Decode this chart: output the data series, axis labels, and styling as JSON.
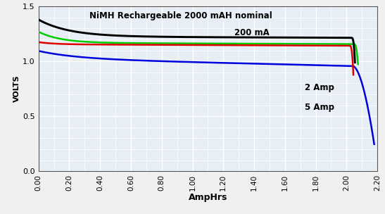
{
  "title_line1": "NiMH Rechargeable 2000 mAH nominal",
  "title_line2": "200 mA",
  "xlabel": "AmpHrs",
  "ylabel": "VOLTS",
  "xlim": [
    0.0,
    2.2
  ],
  "ylim": [
    0.0,
    1.5
  ],
  "xticks": [
    0.0,
    0.2,
    0.4,
    0.6,
    0.8,
    1.0,
    1.2,
    1.4,
    1.6,
    1.8,
    2.0,
    2.2
  ],
  "yticks": [
    0.0,
    0.5,
    1.0,
    1.5
  ],
  "outer_bg": "#f0f0f0",
  "plot_bg": "#e8eef5",
  "grid_color": "#ffffff",
  "label_2amp": "2 Amp",
  "label_5amp": "5 Amp",
  "colors": {
    "black_200ma": "#000000",
    "red_500ma": "#dd0000",
    "green_1amp": "#00cc00",
    "blue_5amp": "#0000dd"
  }
}
